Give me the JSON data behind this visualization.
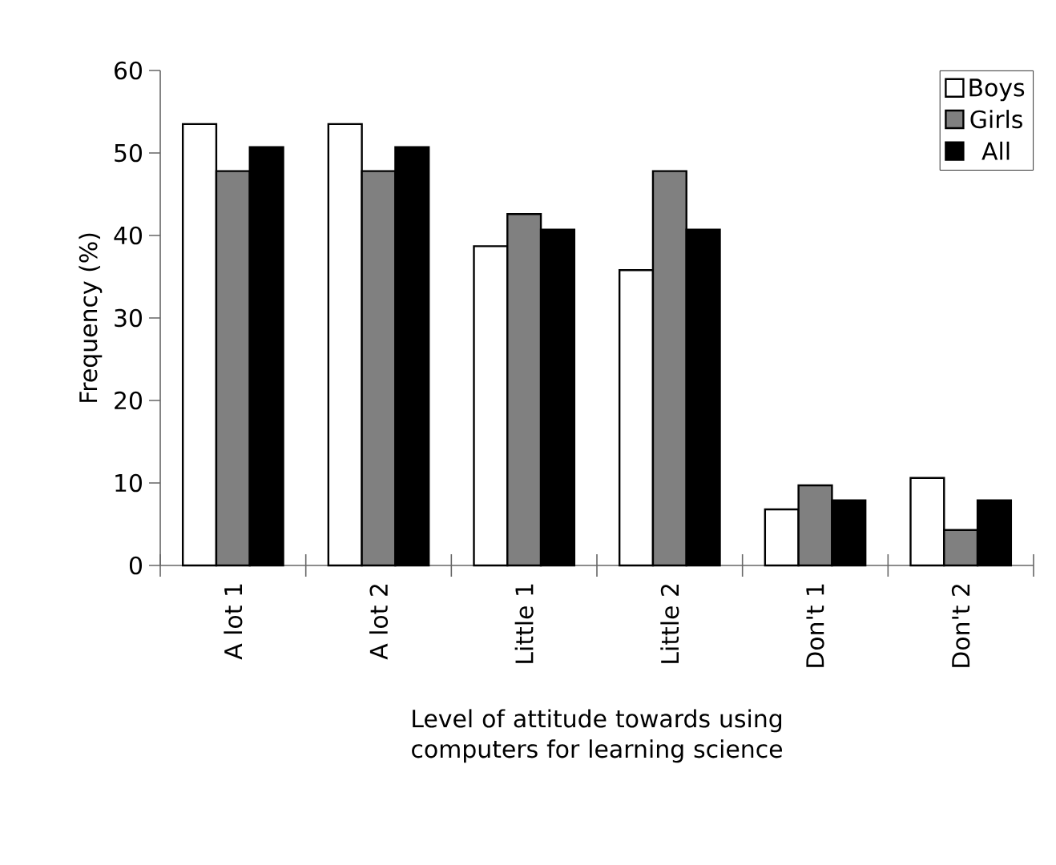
{
  "chart_data": {
    "type": "bar",
    "xlabel": "Level of attitude towards using computers for learning science",
    "ylabel": "Frequency (%)",
    "categories": [
      "A lot 1",
      "A lot 2",
      "Little 1",
      "Little 2",
      "Don't 1",
      "Don't 2"
    ],
    "series": [
      {
        "name": "Boys",
        "color": "#ffffff",
        "values": [
          53.5,
          53.5,
          38.7,
          35.8,
          6.8,
          10.6
        ]
      },
      {
        "name": "Girls",
        "color": "#808080",
        "values": [
          47.8,
          47.8,
          42.6,
          47.8,
          9.7,
          4.3
        ]
      },
      {
        "name": "All",
        "color": "#000000",
        "values": [
          50.7,
          50.7,
          40.7,
          40.7,
          7.9,
          7.9
        ]
      }
    ],
    "ylim": [
      0,
      60
    ],
    "yticks": [
      0,
      10,
      20,
      30,
      40,
      50,
      60
    ],
    "legend": "top right",
    "grid": false
  }
}
